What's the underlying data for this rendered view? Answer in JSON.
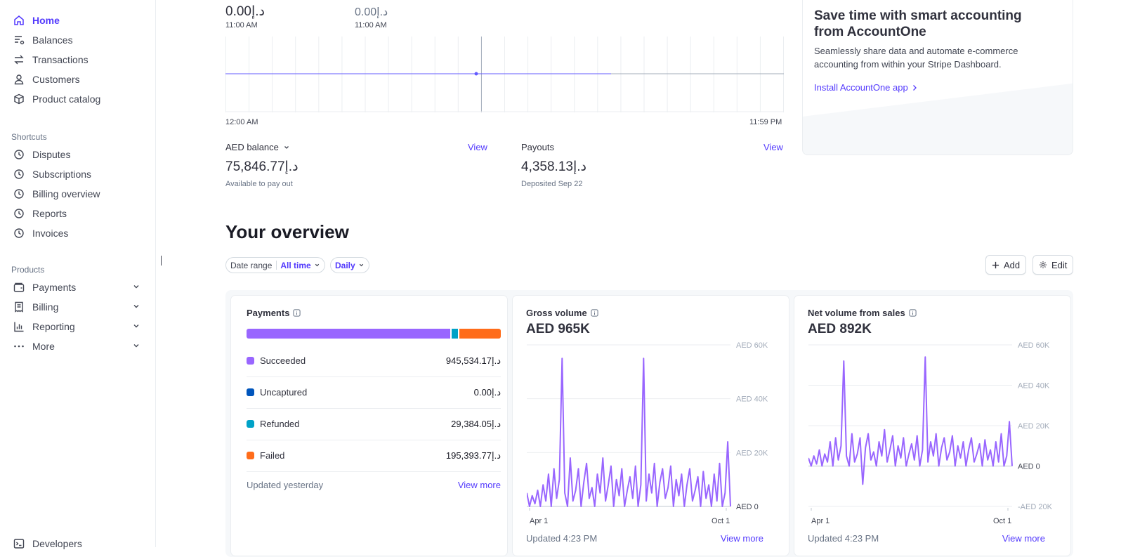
{
  "sidebar": {
    "main_items": [
      {
        "label": "Home",
        "icon": "home-icon",
        "active": true
      },
      {
        "label": "Balances",
        "icon": "balances-icon"
      },
      {
        "label": "Transactions",
        "icon": "transactions-icon"
      },
      {
        "label": "Customers",
        "icon": "customer-icon"
      },
      {
        "label": "Product catalog",
        "icon": "box-icon"
      }
    ],
    "shortcuts_heading": "Shortcuts",
    "shortcuts": [
      {
        "label": "Disputes",
        "icon": "clock-icon"
      },
      {
        "label": "Subscriptions",
        "icon": "clock-icon"
      },
      {
        "label": "Billing overview",
        "icon": "clock-icon"
      },
      {
        "label": "Reports",
        "icon": "clock-icon"
      },
      {
        "label": "Invoices",
        "icon": "clock-icon"
      }
    ],
    "products_heading": "Products",
    "products": [
      {
        "label": "Payments",
        "icon": "wallet-icon"
      },
      {
        "label": "Billing",
        "icon": "billing-icon"
      },
      {
        "label": "Reporting",
        "icon": "bar-chart-icon"
      },
      {
        "label": "More",
        "icon": "more-icon"
      }
    ],
    "developers": {
      "label": "Developers",
      "icon": "terminal-icon"
    }
  },
  "today": {
    "left_amount": "0.00د.إ",
    "left_time": "11:00 AM",
    "right_amount": "0.00د.إ",
    "right_time": "11:00 AM",
    "x_start": "12:00 AM",
    "x_end": "11:59 PM"
  },
  "balance": {
    "label": "AED balance",
    "view": "View",
    "amount": "75,846.77د.إ",
    "sub": "Available to pay out"
  },
  "payouts": {
    "label": "Payouts",
    "view": "View",
    "amount": "4,358.13د.إ",
    "sub": "Deposited Sep 22"
  },
  "promo": {
    "title": "Save time with smart accounting from AccountOne",
    "body": "Seamlessly share data and automate e-commerce accounting from within your Stripe Dashboard.",
    "link": "Install AccountOne app"
  },
  "overview": {
    "title": "Your overview",
    "date_range_label": "Date range",
    "date_range_value": "All time",
    "interval_value": "Daily",
    "add_label": "Add",
    "edit_label": "Edit"
  },
  "payments_card": {
    "title": "Payments",
    "bar_fractions": {
      "succeeded": 0.809,
      "refunded": 0.025,
      "failed": 0.166
    },
    "rows": [
      {
        "label": "Succeeded",
        "amount": "945,534.17د.إ",
        "color": "#9966ff"
      },
      {
        "label": "Uncaptured",
        "amount": "0.00د.إ",
        "color": "#0055bc"
      },
      {
        "label": "Refunded",
        "amount": "29,384.05د.إ",
        "color": "#00a2c7"
      },
      {
        "label": "Failed",
        "amount": "195,393.77د.إ",
        "color": "#ff6c1a"
      }
    ],
    "footer": "Updated yesterday",
    "view_more": "View more"
  },
  "gross_card": {
    "title": "Gross volume",
    "total": "AED 965K",
    "y_labels": [
      "AED 60K",
      "AED 40K",
      "AED 20K",
      "AED 0"
    ],
    "x_labels": [
      "Apr 1",
      "Oct 1"
    ],
    "footer": "Updated 4:23 PM",
    "view_more": "View more"
  },
  "net_card": {
    "title": "Net volume from sales",
    "total": "AED 892K",
    "y_labels": [
      "AED 60K",
      "AED 40K",
      "AED 20K",
      "AED 0",
      "-AED 20K"
    ],
    "x_labels": [
      "Apr 1",
      "Oct 1"
    ],
    "footer": "Updated 4:23 PM",
    "view_more": "View more"
  },
  "chart_data": [
    {
      "type": "line",
      "title": "Gross volume",
      "ylim": [
        0,
        60000
      ],
      "x_ticks": [
        "Apr 1",
        "Oct 1"
      ],
      "series": [
        {
          "name": "Gross volume",
          "values": [
            5000,
            0,
            4000,
            1000,
            6000,
            0,
            8000,
            2000,
            12000,
            0,
            14000,
            3000,
            10000,
            55000,
            5000,
            0,
            18000,
            2000,
            6000,
            14000,
            0,
            9000,
            16000,
            3000,
            7000,
            0,
            12000,
            5000,
            18000,
            2000,
            8000,
            15000,
            0,
            10000,
            4000,
            14000,
            0,
            6000,
            11000,
            3000,
            15000,
            0,
            8000,
            55000,
            2000,
            12000,
            5000,
            16000,
            0,
            9000,
            14000,
            3000,
            7000,
            15000,
            0,
            10000,
            4000,
            12000,
            0,
            8000,
            14000,
            2000,
            6000,
            11000,
            0,
            13000,
            3000,
            8000,
            0,
            12000,
            2000,
            16000,
            0,
            5000,
            24000,
            0
          ]
        }
      ]
    },
    {
      "type": "line",
      "title": "Net volume from sales",
      "ylim": [
        -20000,
        60000
      ],
      "x_ticks": [
        "Apr 1",
        "Oct 1"
      ],
      "series": [
        {
          "name": "Net volume from sales",
          "values": [
            4000,
            0,
            5000,
            1000,
            8000,
            0,
            6000,
            2000,
            12000,
            0,
            14000,
            3000,
            10000,
            52000,
            5000,
            0,
            16000,
            2000,
            6000,
            14000,
            -9000,
            9000,
            16000,
            3000,
            7000,
            0,
            12000,
            5000,
            18000,
            2000,
            8000,
            15000,
            0,
            10000,
            4000,
            14000,
            0,
            6000,
            11000,
            3000,
            15000,
            0,
            8000,
            54000,
            2000,
            12000,
            5000,
            16000,
            0,
            9000,
            14000,
            3000,
            7000,
            15000,
            0,
            10000,
            4000,
            12000,
            0,
            8000,
            14000,
            2000,
            6000,
            11000,
            0,
            13000,
            3000,
            8000,
            0,
            12000,
            2000,
            16000,
            0,
            5000,
            22000,
            0
          ]
        }
      ]
    }
  ]
}
